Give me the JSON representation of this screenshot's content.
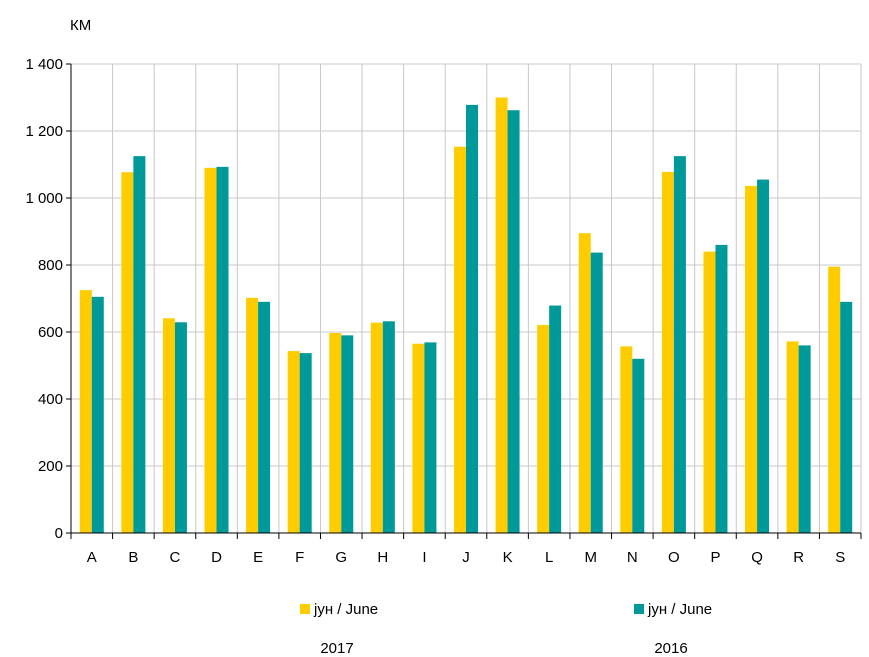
{
  "chart_data": {
    "type": "bar",
    "ylabel": "КМ",
    "ylim": [
      0,
      1400
    ],
    "yticks": [
      0,
      200,
      400,
      600,
      800,
      1000,
      1200,
      1400
    ],
    "ytick_labels": [
      "0",
      "200",
      "400",
      "600",
      "800",
      "1 000",
      "1 200",
      "1 400"
    ],
    "grid": true,
    "legend_position": "bottom",
    "categories": [
      "A",
      "B",
      "C",
      "D",
      "E",
      "F",
      "G",
      "H",
      "I",
      "J",
      "K",
      "L",
      "M",
      "N",
      "O",
      "P",
      "Q",
      "R",
      "S"
    ],
    "series": [
      {
        "name": "јун / June",
        "year": "2017",
        "color": "#FFCC00",
        "values": [
          725,
          1077,
          641,
          1090,
          702,
          543,
          597,
          628,
          565,
          1153,
          1300,
          621,
          895,
          557,
          1078,
          840,
          1036,
          572,
          795
        ]
      },
      {
        "name": "јун / June",
        "year": "2016",
        "color": "#009999",
        "values": [
          705,
          1125,
          629,
          1093,
          690,
          537,
          590,
          632,
          569,
          1278,
          1262,
          679,
          837,
          520,
          1125,
          860,
          1055,
          560,
          690
        ]
      }
    ]
  }
}
